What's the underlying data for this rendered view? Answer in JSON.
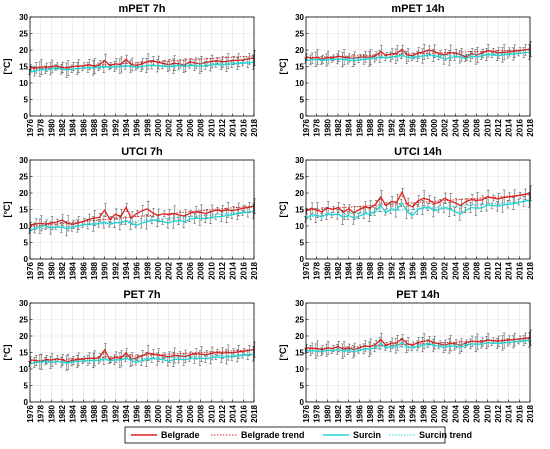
{
  "legend": {
    "items": [
      {
        "label": "Belgrade",
        "color": "#e02020",
        "style": "solid"
      },
      {
        "label": "Belgrade trend",
        "color": "#e02020",
        "style": "dotted"
      },
      {
        "label": "Surcin",
        "color": "#22d3d3",
        "style": "solid"
      },
      {
        "label": "Surcin trend",
        "color": "#22d3d3",
        "style": "dotted"
      }
    ]
  },
  "chart_data": [
    {
      "type": "line",
      "title": "mPET 7h",
      "ylabel": "[°C]",
      "ylim": [
        0,
        30
      ],
      "yticks": [
        0,
        5,
        10,
        15,
        20,
        25,
        30
      ],
      "xticks": [
        1976,
        1978,
        1980,
        1982,
        1984,
        1986,
        1988,
        1990,
        1992,
        1994,
        1996,
        1998,
        2000,
        2002,
        2004,
        2006,
        2008,
        2010,
        2012,
        2014,
        2016,
        2018
      ],
      "series": [
        {
          "name": "Belgrade",
          "values": [
            14.6,
            14.6,
            14.8,
            14.8,
            15.0,
            15.2,
            14.7,
            14.5,
            15.0,
            15.1,
            15.2,
            15.6,
            15.1,
            15.5,
            16.8,
            15.3,
            15.8,
            15.6,
            17.2,
            15.6,
            15.3,
            15.8,
            16.5,
            16.8,
            16.2,
            16.0,
            15.5,
            16.0,
            15.8,
            15.4,
            16.5,
            16.0,
            15.8,
            16.3,
            16.5,
            16.8,
            16.4,
            16.6,
            16.8,
            16.9,
            17.0,
            17.3,
            17.6
          ]
        },
        {
          "name": "Belgrade trend",
          "values": [
            14.2,
            18.2
          ]
        },
        {
          "name": "Surcin",
          "values": [
            13.3,
            13.6,
            14.2,
            14.0,
            14.3,
            14.7,
            14.2,
            13.9,
            14.3,
            14.4,
            14.5,
            14.7,
            14.6,
            14.9,
            15.0,
            14.8,
            15.0,
            15.1,
            15.3,
            15.1,
            14.7,
            15.0,
            15.3,
            15.4,
            15.2,
            15.1,
            14.9,
            15.1,
            15.3,
            15.0,
            15.3,
            15.2,
            15.1,
            15.3,
            15.5,
            15.6,
            15.5,
            15.7,
            15.8,
            15.9,
            16.0,
            16.1,
            16.3
          ]
        },
        {
          "name": "Surcin trend",
          "values": [
            13.8,
            16.4
          ]
        }
      ]
    },
    {
      "type": "line",
      "title": "mPET 14h",
      "ylabel": "[°C]",
      "ylim": [
        0,
        30
      ],
      "yticks": [
        0,
        5,
        10,
        15,
        20,
        25,
        30
      ],
      "xticks": [
        1976,
        1978,
        1980,
        1982,
        1984,
        1986,
        1988,
        1990,
        1992,
        1994,
        1996,
        1998,
        2000,
        2002,
        2004,
        2006,
        2008,
        2010,
        2012,
        2014,
        2016,
        2018
      ],
      "series": [
        {
          "name": "Belgrade",
          "values": [
            18.0,
            17.5,
            17.8,
            17.2,
            17.7,
            17.6,
            18.1,
            17.8,
            17.6,
            17.5,
            17.8,
            17.9,
            17.8,
            18.2,
            19.5,
            18.4,
            18.8,
            19.0,
            20.2,
            18.5,
            18.2,
            19.1,
            19.4,
            20.0,
            19.6,
            18.9,
            18.5,
            19.2,
            19.0,
            18.6,
            17.8,
            18.9,
            18.5,
            19.0,
            19.8,
            19.6,
            19.1,
            19.3,
            19.4,
            19.6,
            19.8,
            20.0,
            20.3
          ]
        },
        {
          "name": "Belgrade trend",
          "values": [
            17.7,
            20.1
          ]
        },
        {
          "name": "Surcin",
          "values": [
            16.8,
            17.0,
            17.2,
            16.8,
            17.0,
            17.1,
            17.3,
            17.1,
            16.9,
            16.8,
            17.0,
            17.2,
            17.3,
            17.5,
            18.0,
            17.6,
            17.9,
            18.1,
            18.5,
            17.8,
            17.5,
            18.0,
            18.2,
            18.6,
            18.3,
            17.9,
            17.2,
            17.6,
            18.0,
            17.9,
            17.4,
            18.1,
            17.9,
            18.2,
            18.6,
            18.5,
            18.3,
            18.5,
            18.7,
            18.8,
            19.0,
            19.2,
            19.4
          ]
        },
        {
          "name": "Surcin trend",
          "values": [
            17.0,
            19.2
          ]
        }
      ]
    },
    {
      "type": "line",
      "title": "UTCI 7h",
      "ylabel": "[°C]",
      "ylim": [
        0,
        30
      ],
      "yticks": [
        0,
        5,
        10,
        15,
        20,
        25,
        30
      ],
      "xticks": [
        1976,
        1978,
        1980,
        1982,
        1984,
        1986,
        1988,
        1990,
        1992,
        1994,
        1996,
        1998,
        2000,
        2002,
        2004,
        2006,
        2008,
        2010,
        2012,
        2014,
        2016,
        2018
      ],
      "series": [
        {
          "name": "Belgrade",
          "values": [
            10.3,
            10.6,
            10.8,
            10.6,
            10.9,
            11.2,
            11.8,
            10.8,
            10.5,
            10.9,
            11.4,
            12.0,
            12.4,
            12.6,
            14.8,
            12.0,
            13.6,
            12.8,
            15.6,
            12.4,
            13.8,
            14.6,
            15.2,
            14.0,
            13.2,
            13.7,
            13.4,
            13.8,
            13.3,
            13.0,
            13.9,
            14.3,
            14.1,
            13.8,
            14.4,
            14.8,
            14.6,
            14.9,
            14.7,
            15.0,
            15.4,
            15.6,
            16.0
          ]
        },
        {
          "name": "Belgrade trend",
          "values": [
            9.9,
            16.1
          ]
        },
        {
          "name": "Surcin",
          "values": [
            8.5,
            9.4,
            9.9,
            10.1,
            9.4,
            9.8,
            9.6,
            9.2,
            9.6,
            10.0,
            10.4,
            10.6,
            10.6,
            10.8,
            11.2,
            10.5,
            11.0,
            11.0,
            11.6,
            10.8,
            10.2,
            10.9,
            11.3,
            11.8,
            11.6,
            11.3,
            10.9,
            11.5,
            11.6,
            11.3,
            12.1,
            12.3,
            12.4,
            12.2,
            12.6,
            12.8,
            12.9,
            13.2,
            13.4,
            13.8,
            14.0,
            14.2,
            14.5
          ]
        },
        {
          "name": "Surcin trend",
          "values": [
            8.9,
            14.4
          ]
        }
      ]
    },
    {
      "type": "line",
      "title": "UTCI 14h",
      "ylabel": "[°C]",
      "ylim": [
        0,
        30
      ],
      "yticks": [
        0,
        5,
        10,
        15,
        20,
        25,
        30
      ],
      "xticks": [
        1976,
        1978,
        1980,
        1982,
        1984,
        1986,
        1988,
        1990,
        1992,
        1994,
        1996,
        1998,
        2000,
        2002,
        2004,
        2006,
        2008,
        2010,
        2012,
        2014,
        2016,
        2018
      ],
      "series": [
        {
          "name": "Belgrade",
          "values": [
            14.5,
            15.4,
            14.8,
            14.3,
            15.5,
            15.0,
            15.6,
            14.2,
            15.2,
            14.0,
            15.0,
            15.8,
            15.4,
            16.5,
            18.8,
            16.2,
            17.4,
            17.2,
            20.2,
            16.5,
            15.8,
            17.6,
            18.4,
            18.0,
            16.8,
            17.2,
            18.4,
            17.6,
            17.0,
            16.2,
            17.4,
            18.0,
            17.8,
            17.9,
            18.9,
            18.5,
            18.2,
            18.6,
            18.8,
            19.0,
            19.3,
            19.6,
            20.0
          ]
        },
        {
          "name": "Belgrade trend",
          "values": [
            14.8,
            19.5
          ]
        },
        {
          "name": "Surcin",
          "values": [
            12.0,
            13.4,
            13.2,
            12.8,
            13.8,
            13.4,
            13.6,
            12.6,
            13.2,
            12.4,
            13.0,
            13.7,
            13.5,
            14.4,
            16.2,
            14.1,
            15.2,
            14.9,
            17.0,
            14.2,
            13.2,
            15.0,
            15.6,
            15.8,
            14.6,
            15.0,
            15.6,
            15.0,
            14.4,
            13.6,
            14.8,
            15.6,
            15.4,
            15.5,
            16.4,
            16.2,
            16.0,
            16.4,
            16.6,
            16.8,
            17.2,
            17.5,
            17.9
          ]
        },
        {
          "name": "Surcin trend",
          "values": [
            12.8,
            17.5
          ]
        }
      ]
    },
    {
      "type": "line",
      "title": "PET 7h",
      "ylabel": "[°C]",
      "ylim": [
        0,
        30
      ],
      "yticks": [
        0,
        5,
        10,
        15,
        20,
        25,
        30
      ],
      "xticks": [
        1976,
        1978,
        1980,
        1982,
        1984,
        1986,
        1988,
        1990,
        1992,
        1994,
        1996,
        1998,
        2000,
        2002,
        2004,
        2006,
        2008,
        2010,
        2012,
        2014,
        2016,
        2018
      ],
      "series": [
        {
          "name": "Belgrade",
          "values": [
            12.8,
            12.6,
            12.2,
            12.9,
            12.7,
            13.1,
            12.8,
            12.2,
            12.6,
            12.9,
            13.0,
            13.3,
            13.2,
            13.4,
            15.8,
            12.8,
            13.6,
            13.2,
            14.9,
            13.0,
            13.4,
            14.0,
            14.8,
            14.6,
            14.2,
            14.0,
            13.6,
            14.1,
            14.0,
            13.8,
            14.3,
            14.6,
            14.5,
            14.3,
            14.7,
            15.0,
            14.8,
            15.0,
            14.9,
            15.2,
            15.4,
            15.6,
            15.9
          ]
        },
        {
          "name": "Belgrade trend",
          "values": [
            12.4,
            15.8
          ]
        },
        {
          "name": "Surcin",
          "values": [
            11.5,
            12.0,
            12.2,
            12.4,
            12.0,
            12.3,
            12.1,
            11.8,
            12.1,
            12.3,
            12.4,
            12.6,
            12.6,
            12.7,
            13.2,
            12.4,
            12.8,
            12.7,
            13.4,
            12.6,
            12.0,
            12.5,
            12.9,
            13.2,
            13.0,
            12.8,
            12.4,
            12.9,
            13.0,
            12.8,
            13.1,
            13.2,
            13.3,
            13.1,
            13.4,
            13.6,
            13.5,
            13.7,
            13.8,
            14.0,
            14.1,
            14.3,
            14.6
          ]
        },
        {
          "name": "Surcin trend",
          "values": [
            11.8,
            14.5
          ]
        }
      ]
    },
    {
      "type": "line",
      "title": "PET 14h",
      "ylabel": "[°C]",
      "ylim": [
        0,
        30
      ],
      "yticks": [
        0,
        5,
        10,
        15,
        20,
        25,
        30
      ],
      "xticks": [
        1976,
        1978,
        1980,
        1982,
        1984,
        1986,
        1988,
        1990,
        1992,
        1994,
        1996,
        1998,
        2000,
        2002,
        2004,
        2006,
        2008,
        2010,
        2012,
        2014,
        2016,
        2018
      ],
      "series": [
        {
          "name": "Belgrade",
          "values": [
            16.5,
            16.3,
            16.2,
            15.8,
            16.4,
            16.2,
            16.8,
            16.0,
            16.3,
            15.9,
            16.4,
            17.0,
            16.8,
            17.4,
            18.9,
            17.2,
            17.8,
            17.9,
            19.2,
            17.6,
            17.3,
            18.0,
            18.4,
            18.6,
            18.0,
            17.6,
            17.2,
            17.8,
            17.6,
            17.2,
            17.9,
            18.4,
            18.3,
            18.2,
            18.8,
            18.6,
            18.4,
            18.6,
            18.8,
            18.9,
            19.1,
            19.3,
            19.5
          ]
        },
        {
          "name": "Belgrade trend",
          "values": [
            16.0,
            19.2
          ]
        },
        {
          "name": "Surcin",
          "values": [
            15.5,
            15.6,
            15.4,
            15.2,
            15.7,
            15.5,
            16.0,
            15.4,
            15.6,
            15.2,
            15.6,
            16.1,
            16.0,
            16.5,
            17.8,
            16.4,
            16.9,
            17.0,
            18.0,
            16.8,
            16.3,
            17.0,
            17.4,
            17.7,
            17.2,
            16.9,
            16.5,
            17.0,
            16.9,
            16.6,
            17.2,
            17.6,
            17.5,
            17.5,
            18.0,
            17.9,
            17.7,
            17.9,
            18.1,
            18.2,
            18.4,
            18.6,
            18.8
          ]
        },
        {
          "name": "Surcin trend",
          "values": [
            15.3,
            18.4
          ]
        }
      ]
    }
  ]
}
